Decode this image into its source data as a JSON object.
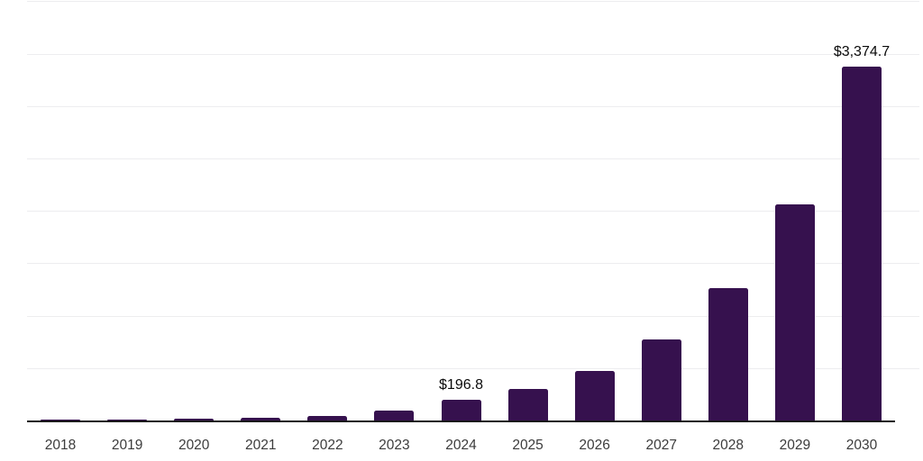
{
  "chart_data": {
    "type": "bar",
    "title": "",
    "xlabel": "",
    "ylabel": "",
    "categories": [
      "2018",
      "2019",
      "2020",
      "2021",
      "2022",
      "2023",
      "2024",
      "2025",
      "2026",
      "2027",
      "2028",
      "2029",
      "2030"
    ],
    "values": [
      8,
      12,
      18,
      28,
      43,
      95,
      196.8,
      300,
      474,
      770,
      1260,
      2058,
      3374.7
    ],
    "value_labels": [
      {
        "index": 6,
        "text": "$196.8"
      },
      {
        "index": 12,
        "text": "$3,374.7"
      }
    ],
    "ylim": [
      0,
      4000
    ],
    "gridline_step": 500,
    "grid": "horizontal-only",
    "legend": "none",
    "y_tick_labels_visible": false,
    "bar_color": "#36114E",
    "axis_color": "#1a1a1a",
    "gridline_color": "#ededef",
    "label_color": "#0b0b0b",
    "tick_label_color": "#3c3c3c"
  }
}
